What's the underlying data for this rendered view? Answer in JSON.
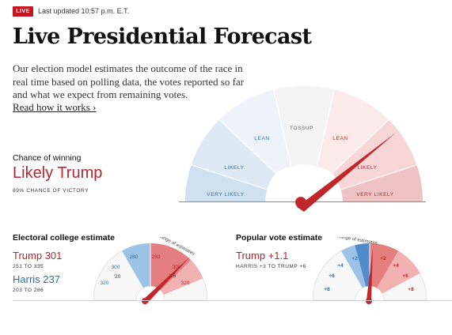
{
  "header": {
    "live_badge": "LIVE",
    "updated_text": "Last updated 10:57 p.m. E.T.",
    "title": "Live Presidential Forecast",
    "intro": "Our election model estimates the outcome of the race in real time based on polling data, the votes reported so far and what we expect from remaining votes.",
    "read_more": "Read how it works ›"
  },
  "chance": {
    "label": "Chance of winning",
    "value": "Likely Trump",
    "sub": "89% CHANCE OF VICTORY",
    "probability_trump": 0.89,
    "segments": [
      "VERY LIKELY",
      "LIKELY",
      "LEAN",
      "TOSSUP",
      "LEAN",
      "LIKELY",
      "VERY LIKELY"
    ]
  },
  "electoral": {
    "title": "Electoral college estimate",
    "trump_label": "Trump 301",
    "trump_range": "251 TO 335",
    "harris_label": "Harris 237",
    "harris_range": "203 TO 286",
    "gauge_ticks": [
      "320",
      "300",
      "280",
      "280",
      "300",
      "320"
    ],
    "past_marks": [
      "'20",
      "'16"
    ],
    "range_label": "Range of estimates",
    "estimate_trump": 301
  },
  "popular": {
    "title": "Popular vote estimate",
    "value_label": "Trump +1.1",
    "range": "HARRIS +3 TO TRUMP +6",
    "gauge_ticks": [
      "+8",
      "+6",
      "+4",
      "+2",
      "+2",
      "+4",
      "+6",
      "+8"
    ],
    "range_label": "Range of estimates",
    "estimate_margin": 1.1
  },
  "colors": {
    "trump_red": "#b8262b",
    "harris_blue": "#2f6ea8",
    "live_red": "#c4161c"
  }
}
